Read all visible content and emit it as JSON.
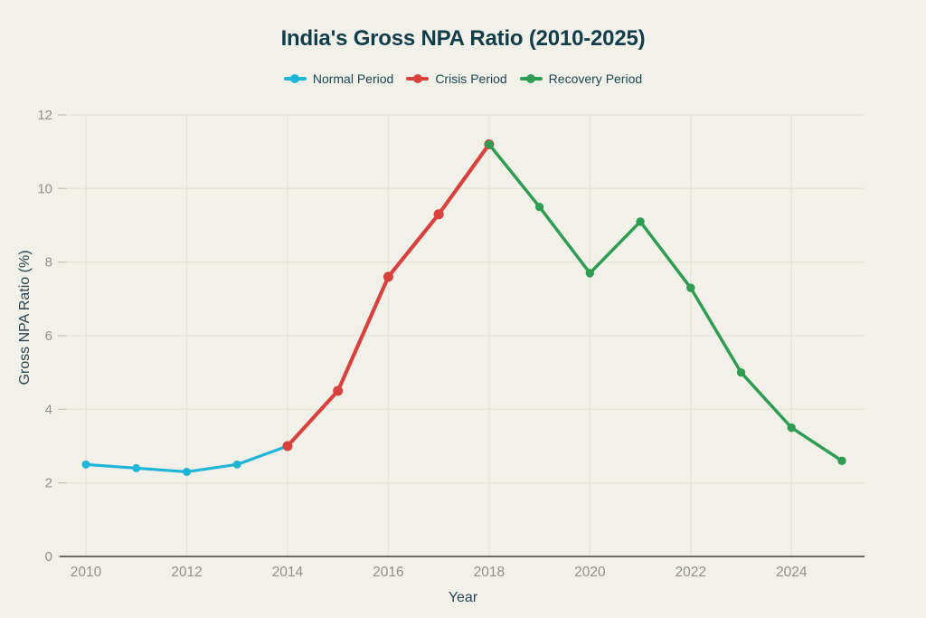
{
  "chart_data": {
    "type": "line",
    "title": "India's Gross NPA Ratio (2010-2025)",
    "xlabel": "Year",
    "ylabel": "Gross NPA Ratio (%)",
    "xlim": [
      2010,
      2025
    ],
    "ylim": [
      0,
      12
    ],
    "x_ticks": [
      2010,
      2012,
      2014,
      2016,
      2018,
      2020,
      2022,
      2024
    ],
    "y_ticks": [
      0,
      2,
      4,
      6,
      8,
      10,
      12
    ],
    "grid": true,
    "legend_position": "top",
    "series": [
      {
        "name": "Normal Period",
        "color": "#1fb5d6",
        "x": [
          2010,
          2011,
          2012,
          2013,
          2014
        ],
        "values": [
          2.5,
          2.4,
          2.3,
          2.5,
          3.0
        ]
      },
      {
        "name": "Crisis Period",
        "color": "#d8413e",
        "x": [
          2014,
          2015,
          2016,
          2017,
          2018
        ],
        "values": [
          3.0,
          4.5,
          7.6,
          9.3,
          11.2
        ]
      },
      {
        "name": "Recovery Period",
        "color": "#2e9c52",
        "x": [
          2018,
          2019,
          2020,
          2021,
          2022,
          2023,
          2024,
          2025
        ],
        "values": [
          11.2,
          9.5,
          7.7,
          9.1,
          7.3,
          5.0,
          3.5,
          2.6
        ]
      }
    ]
  },
  "colors": {
    "background": "#f2f1e9",
    "grid": "#e4e4da",
    "tick_dash": "#c7c7be",
    "axis_line": "#3f3f3d",
    "tick_label": "#90918a",
    "axis_title": "#27444e",
    "title": "#113d4b",
    "legend_text": "#1c4551"
  }
}
